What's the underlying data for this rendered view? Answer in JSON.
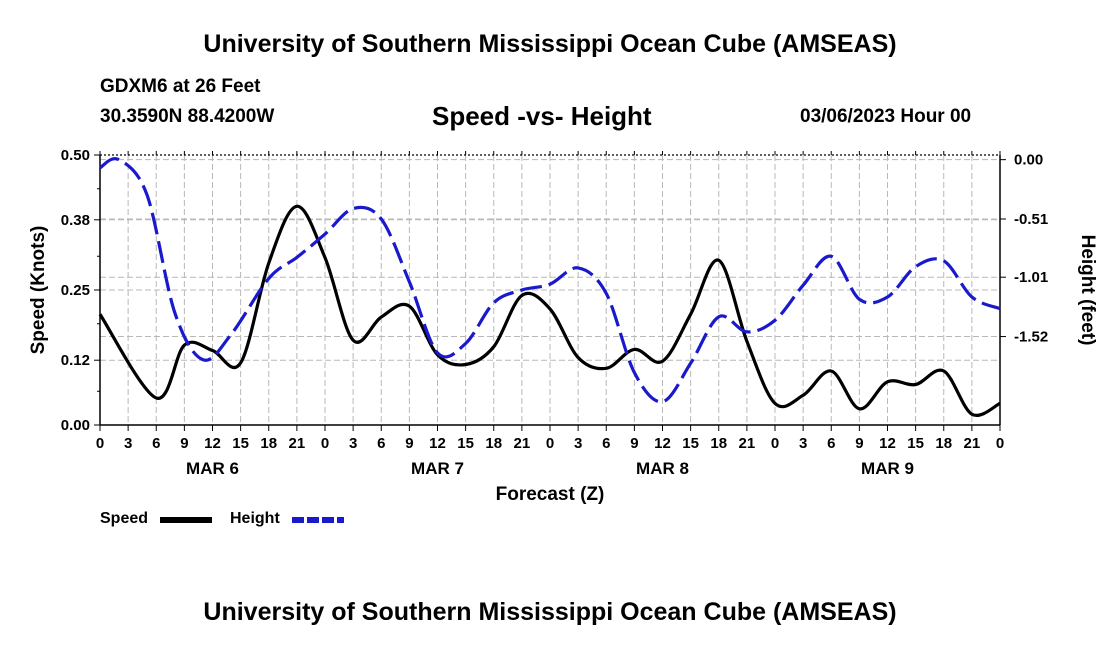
{
  "header": {
    "title": "University of Southern Mississippi Ocean Cube (AMSEAS)",
    "station": "GDXM6 at 26 Feet",
    "coords": "30.3590N  88.4200W",
    "subtitle": "Speed -vs- Height",
    "datetime": "03/06/2023 Hour 00"
  },
  "footer": {
    "title": "University of Southern Mississippi Ocean Cube (AMSEAS)"
  },
  "legend": {
    "speed_label": "Speed",
    "height_label": "Height"
  },
  "colors": {
    "speed": "#000000",
    "height": "#1a1acc",
    "grid": "#b8b8b8"
  },
  "chart_data": {
    "type": "line",
    "title": "Speed -vs- Height",
    "xlabel": "Forecast (Z)",
    "ylabel_left": "Speed (Knots)",
    "ylabel_right": "Height (feet)",
    "x_range_hours": [
      0,
      96
    ],
    "x_ticks": [
      "0",
      "3",
      "6",
      "9",
      "12",
      "15",
      "18",
      "21",
      "0",
      "3",
      "6",
      "9",
      "12",
      "15",
      "18",
      "21",
      "0",
      "3",
      "6",
      "9",
      "12",
      "15",
      "18",
      "21",
      "0",
      "3",
      "6",
      "9",
      "12",
      "15",
      "18",
      "21",
      "0"
    ],
    "day_labels": [
      {
        "label": "MAR 6",
        "hour": 12
      },
      {
        "label": "MAR 7",
        "hour": 36
      },
      {
        "label": "MAR 8",
        "hour": 60
      },
      {
        "label": "MAR 9",
        "hour": 84
      }
    ],
    "left_axis": {
      "ticks": [
        "0.00",
        "0.12",
        "0.25",
        "0.38",
        "0.50"
      ],
      "ylim": [
        0,
        0.5
      ]
    },
    "right_axis": {
      "ticks": [
        "0.00",
        "-0.51",
        "-1.01",
        "-1.52"
      ],
      "tick_values": [
        0,
        -0.51,
        -1.01,
        -1.52
      ],
      "ylim": [
        -2.28,
        0.04
      ]
    },
    "series": [
      {
        "name": "Speed",
        "axis": "left",
        "style": "solid",
        "points": [
          [
            0,
            0.205
          ],
          [
            6,
            0.05
          ],
          [
            9,
            0.148
          ],
          [
            12,
            0.138
          ],
          [
            15,
            0.115
          ],
          [
            18,
            0.3
          ],
          [
            21,
            0.405
          ],
          [
            24,
            0.31
          ],
          [
            27,
            0.157
          ],
          [
            30,
            0.2
          ],
          [
            33,
            0.22
          ],
          [
            36,
            0.13
          ],
          [
            39,
            0.112
          ],
          [
            42,
            0.145
          ],
          [
            45,
            0.24
          ],
          [
            48,
            0.215
          ],
          [
            51,
            0.125
          ],
          [
            54,
            0.105
          ],
          [
            57,
            0.14
          ],
          [
            60,
            0.118
          ],
          [
            63,
            0.205
          ],
          [
            66,
            0.305
          ],
          [
            69,
            0.155
          ],
          [
            72,
            0.04
          ],
          [
            75,
            0.055
          ],
          [
            78,
            0.1
          ],
          [
            81,
            0.03
          ],
          [
            84,
            0.08
          ],
          [
            87,
            0.075
          ],
          [
            90,
            0.1
          ],
          [
            93,
            0.02
          ],
          [
            96,
            0.04
          ]
        ]
      },
      {
        "name": "Height",
        "axis": "right",
        "style": "dashed",
        "points": [
          [
            0,
            -0.07
          ],
          [
            2,
            0
          ],
          [
            5,
            -0.3
          ],
          [
            8,
            -1.32
          ],
          [
            11,
            -1.72
          ],
          [
            14,
            -1.5
          ],
          [
            18,
            -1.02
          ],
          [
            21,
            -0.84
          ],
          [
            24,
            -0.64
          ],
          [
            27,
            -0.42
          ],
          [
            30,
            -0.51
          ],
          [
            33,
            -1.05
          ],
          [
            36,
            -1.66
          ],
          [
            39,
            -1.58
          ],
          [
            42,
            -1.23
          ],
          [
            45,
            -1.12
          ],
          [
            48,
            -1.07
          ],
          [
            51,
            -0.93
          ],
          [
            54,
            -1.15
          ],
          [
            57,
            -1.83
          ],
          [
            60,
            -2.08
          ],
          [
            63,
            -1.75
          ],
          [
            66,
            -1.35
          ],
          [
            69,
            -1.48
          ],
          [
            72,
            -1.38
          ],
          [
            75,
            -1.08
          ],
          [
            78,
            -0.83
          ],
          [
            81,
            -1.2
          ],
          [
            84,
            -1.18
          ],
          [
            87,
            -0.92
          ],
          [
            90,
            -0.87
          ],
          [
            93,
            -1.18
          ],
          [
            96,
            -1.28
          ]
        ]
      }
    ]
  }
}
